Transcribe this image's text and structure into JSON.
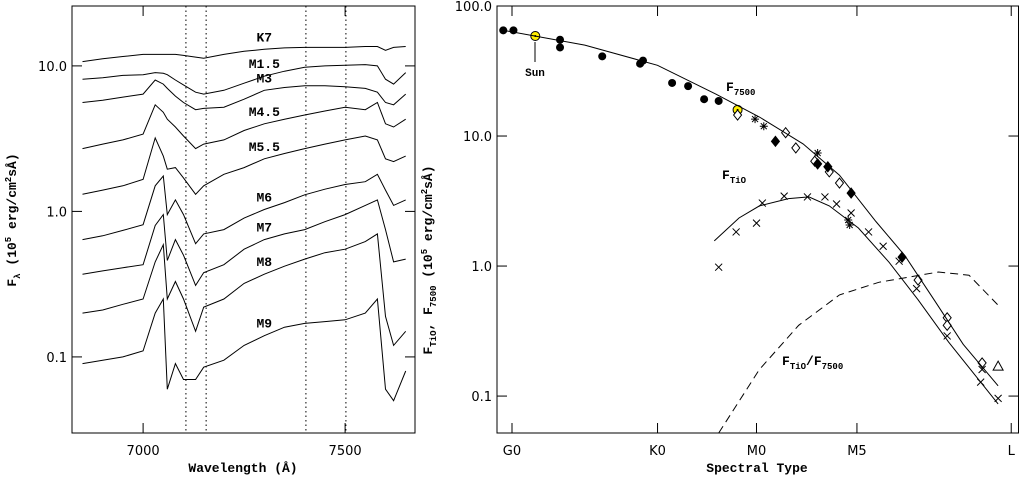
{
  "chart_data": [
    {
      "type": "line",
      "xlabel": "Wavelength (Å)",
      "ylabel": [
        "F",
        "λ",
        " (10",
        "5",
        " erg/cm",
        "2",
        "sÅ)"
      ],
      "xlim": [
        6824,
        7673
      ],
      "ylim": [
        0.03,
        25.8
      ],
      "ylog": true,
      "xticks": [
        7000,
        7500
      ],
      "yticks": [
        0.1,
        {
          "value": 1,
          "label": "1.0"
        },
        {
          "value": 10,
          "label": "10.0"
        }
      ],
      "vlines": [
        7106,
        7156,
        7403,
        7502
      ],
      "x": [
        6850,
        6900,
        6950,
        7000,
        7030,
        7050,
        7060,
        7080,
        7100,
        7130,
        7150,
        7200,
        7250,
        7300,
        7350,
        7400,
        7450,
        7500,
        7550,
        7580,
        7600,
        7620,
        7650
      ],
      "series": [
        {
          "name": "K7",
          "color": "#000",
          "values": [
            10.7,
            11.2,
            11.6,
            12.0,
            12.0,
            12.0,
            12.0,
            12.0,
            11.8,
            11.5,
            11.3,
            12.0,
            12.6,
            13.0,
            13.3,
            13.4,
            13.4,
            13.4,
            13.6,
            13.6,
            12.8,
            13.4,
            13.6
          ]
        },
        {
          "name": "M1.5",
          "color": "#000",
          "values": [
            8.1,
            8.3,
            8.6,
            8.7,
            9.0,
            8.9,
            8.7,
            8.0,
            7.4,
            6.6,
            6.4,
            6.8,
            7.6,
            8.5,
            9.2,
            9.8,
            10.0,
            10.1,
            10.2,
            10.0,
            8.1,
            7.5,
            9.0
          ]
        },
        {
          "name": "M3",
          "color": "#000",
          "values": [
            5.6,
            5.8,
            6.1,
            6.4,
            8.0,
            7.5,
            7.0,
            6.2,
            5.6,
            5.0,
            5.1,
            5.2,
            5.9,
            6.8,
            7.1,
            7.3,
            7.3,
            7.2,
            7.0,
            6.6,
            5.6,
            5.4,
            6.4
          ]
        },
        {
          "name": "M4.5",
          "color": "#000",
          "values": [
            2.7,
            2.9,
            3.1,
            3.4,
            5.4,
            4.8,
            4.3,
            3.8,
            3.3,
            2.7,
            2.9,
            3.1,
            3.6,
            4.0,
            4.3,
            4.6,
            4.9,
            5.2,
            5.0,
            5.6,
            4.0,
            3.8,
            4.3
          ]
        },
        {
          "name": "M5.5",
          "color": "#000",
          "values": [
            1.31,
            1.4,
            1.5,
            1.66,
            3.2,
            2.4,
            1.95,
            2.0,
            1.7,
            1.31,
            1.5,
            1.8,
            2.0,
            2.3,
            2.5,
            2.7,
            2.9,
            3.1,
            3.3,
            3.1,
            2.3,
            2.2,
            2.4
          ]
        },
        {
          "name": "M6",
          "color": "#000",
          "values": [
            0.64,
            0.68,
            0.74,
            0.81,
            1.5,
            1.75,
            0.95,
            1.2,
            0.95,
            0.6,
            0.7,
            0.75,
            0.9,
            1.03,
            1.15,
            1.3,
            1.42,
            1.53,
            1.6,
            1.8,
            1.4,
            1.1,
            1.2
          ]
        },
        {
          "name": "M7",
          "color": "#000",
          "values": [
            0.37,
            0.39,
            0.41,
            0.43,
            0.8,
            0.95,
            0.46,
            0.64,
            0.5,
            0.31,
            0.38,
            0.43,
            0.55,
            0.64,
            0.7,
            0.75,
            0.85,
            0.95,
            1.1,
            1.2,
            0.75,
            0.45,
            0.47
          ]
        },
        {
          "name": "M8",
          "color": "#000",
          "values": [
            0.2,
            0.21,
            0.23,
            0.25,
            0.45,
            0.59,
            0.25,
            0.33,
            0.25,
            0.15,
            0.22,
            0.25,
            0.32,
            0.37,
            0.42,
            0.47,
            0.52,
            0.55,
            0.62,
            0.7,
            0.19,
            0.12,
            0.15
          ]
        },
        {
          "name": "M9",
          "color": "#000",
          "values": [
            0.09,
            0.095,
            0.1,
            0.11,
            0.2,
            0.25,
            0.06,
            0.09,
            0.07,
            0.07,
            0.085,
            0.095,
            0.12,
            0.14,
            0.16,
            0.17,
            0.175,
            0.18,
            0.2,
            0.25,
            0.06,
            0.05,
            0.08
          ]
        }
      ]
    },
    {
      "type": "scatter",
      "xlabel": "Spectral Type",
      "ylabel": [
        "F",
        "TiO",
        ", F",
        "7500",
        " (10",
        "5",
        " erg/cm",
        "2",
        "sÅ)"
      ],
      "xlim": [
        -1.03,
        34.8
      ],
      "ylim": [
        0.052,
        100
      ],
      "ylog": true,
      "xticks": [
        {
          "value": 0,
          "label": "G0"
        },
        {
          "value": 10,
          "label": "K0"
        },
        {
          "value": 16.8,
          "label": "M0"
        },
        {
          "value": 23.7,
          "label": "M5"
        },
        {
          "value": 34.3,
          "label": "L"
        }
      ],
      "yticks": [
        0.1,
        {
          "value": 1,
          "label": "1.0"
        },
        {
          "value": 10,
          "label": "10.0"
        },
        {
          "value": 100,
          "label": "100.0"
        }
      ],
      "annotations": [
        {
          "text": "Sun"
        },
        {
          "parts": [
            "F",
            "7500"
          ]
        },
        {
          "parts": [
            "F",
            "TiO"
          ]
        },
        {
          "parts": [
            "F",
            "TiO",
            "/F",
            "7500"
          ]
        }
      ],
      "series": [
        {
          "marker": "filled-circle",
          "color": "#000",
          "x": [
            -0.6,
            0.1,
            3.3,
            3.3,
            6.2,
            8.8,
            9.0,
            11.0,
            12.1,
            13.2,
            14.2
          ],
          "values": [
            65,
            65,
            55,
            48,
            41,
            36,
            38,
            25.6,
            24.2,
            19.2,
            18.6
          ]
        },
        {
          "marker": "sun",
          "color": "#ffee00",
          "x": [
            1.6,
            15.5
          ],
          "values": [
            58.8,
            15.9
          ]
        },
        {
          "marker": "open-diamond",
          "color": "#000",
          "x": [
            15.5,
            18.8,
            19.5,
            20.8,
            21.8,
            22.5,
            27.9,
            29.9,
            29.9,
            32.3
          ],
          "values": [
            14.5,
            10.6,
            8.1,
            6.4,
            5.3,
            4.35,
            0.78,
            0.4,
            0.35,
            0.18
          ]
        },
        {
          "marker": "filled-diamond",
          "color": "#000",
          "x": [
            18.1,
            21.0,
            21.7,
            23.3,
            26.8
          ],
          "values": [
            9.1,
            6.1,
            5.8,
            3.64,
            1.17
          ]
        },
        {
          "marker": "asterisk",
          "color": "#000",
          "x": [
            16.7,
            17.3,
            21.0,
            23.1,
            23.2
          ],
          "values": [
            13.5,
            11.9,
            7.4,
            2.26,
            2.07
          ]
        },
        {
          "marker": "cross",
          "color": "#000",
          "x": [
            14.2,
            15.4,
            16.8,
            17.2,
            18.7,
            20.3,
            21.5,
            22.3,
            23.3,
            24.5,
            25.5,
            26.6,
            27.8,
            29.9,
            32.2,
            33.4,
            32.3
          ],
          "values": [
            0.98,
            1.83,
            2.14,
            3.05,
            3.45,
            3.4,
            3.4,
            3.0,
            2.56,
            1.83,
            1.42,
            1.09,
            0.67,
            0.29,
            0.128,
            0.096,
            0.16
          ]
        },
        {
          "marker": "open-triangle",
          "color": "#000",
          "x": [
            33.4
          ],
          "values": [
            0.17
          ]
        },
        {
          "line": "solid",
          "color": "#000",
          "x": [
            -0.6,
            5,
            10,
            14,
            17,
            20,
            22.5,
            25,
            27,
            29,
            31,
            33.4
          ],
          "values": [
            65,
            50,
            35,
            21,
            14,
            8.7,
            5,
            2.2,
            1.2,
            0.55,
            0.25,
            0.12
          ]
        },
        {
          "line": "solid",
          "color": "#000",
          "x": [
            13.9,
            15.6,
            17,
            19,
            20.4,
            21.8,
            23.8,
            25.9,
            27.9,
            30,
            33.4
          ],
          "values": [
            1.56,
            2.34,
            2.9,
            3.3,
            3.4,
            2.9,
            1.96,
            1.07,
            0.55,
            0.26,
            0.087
          ]
        },
        {
          "line": "dashed",
          "color": "#000",
          "x": [
            14.2,
            17,
            19.7,
            22.5,
            25.2,
            29.3,
            31.4,
            33.4
          ],
          "values": [
            0.052,
            0.16,
            0.35,
            0.6,
            0.75,
            0.9,
            0.85,
            0.5
          ]
        }
      ]
    }
  ]
}
